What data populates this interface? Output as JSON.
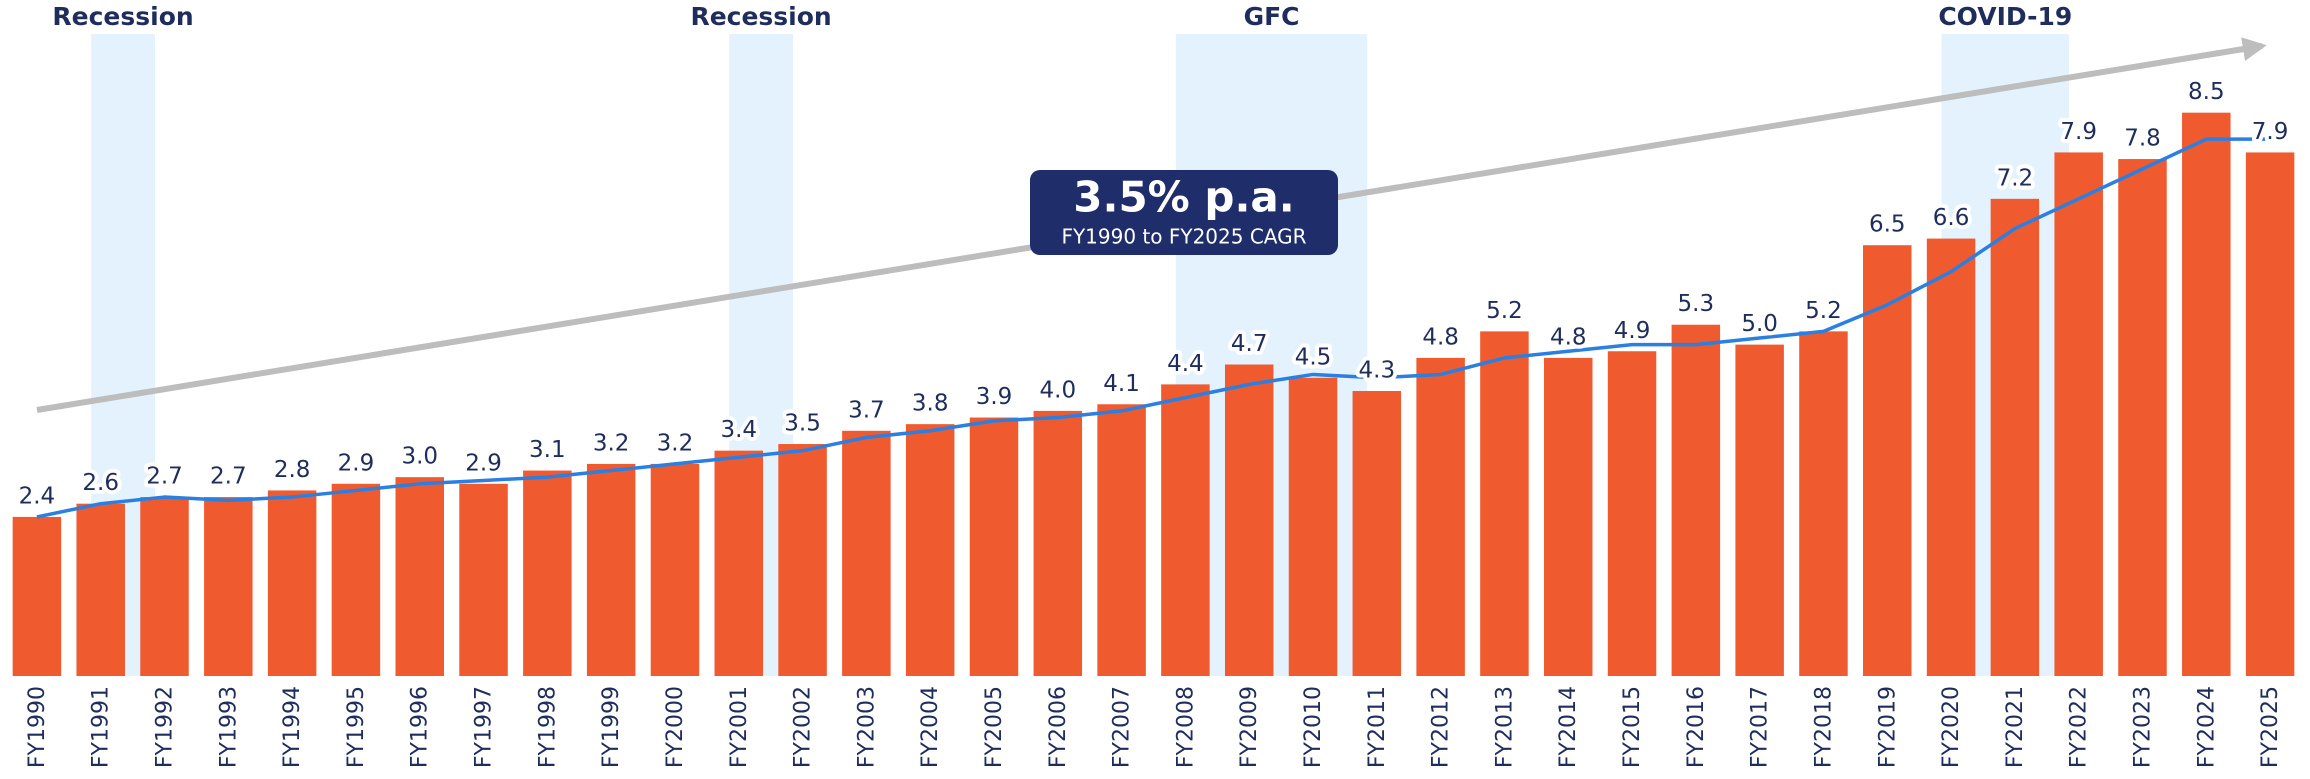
{
  "chart_data": {
    "type": "bar",
    "categories": [
      "FY1990",
      "FY1991",
      "FY1992",
      "FY1993",
      "FY1994",
      "FY1995",
      "FY1996",
      "FY1997",
      "FY1998",
      "FY1999",
      "FY2000",
      "FY2001",
      "FY2002",
      "FY2003",
      "FY2004",
      "FY2005",
      "FY2006",
      "FY2007",
      "FY2008",
      "FY2009",
      "FY2010",
      "FY2011",
      "FY2012",
      "FY2013",
      "FY2014",
      "FY2015",
      "FY2016",
      "FY2017",
      "FY2018",
      "FY2019",
      "FY2020",
      "FY2021",
      "FY2022",
      "FY2023",
      "FY2024",
      "FY2025"
    ],
    "series": [
      {
        "type": "bar",
        "color": "#ef5a2e",
        "values": [
          2.4,
          2.6,
          2.7,
          2.7,
          2.8,
          2.9,
          3.0,
          2.9,
          3.1,
          3.2,
          3.2,
          3.4,
          3.5,
          3.7,
          3.8,
          3.9,
          4.0,
          4.1,
          4.4,
          4.7,
          4.5,
          4.3,
          4.8,
          5.2,
          4.8,
          4.9,
          5.3,
          5.0,
          5.2,
          6.5,
          6.6,
          7.2,
          7.9,
          7.8,
          8.5,
          7.9
        ],
        "value_labels": [
          "2.4",
          "2.6",
          "2.7",
          "2.7",
          "2.8",
          "2.9",
          "3.0",
          "2.9",
          "3.1",
          "3.2",
          "3.2",
          "3.4",
          "3.5",
          "3.7",
          "3.8",
          "3.9",
          "4.0",
          "4.1",
          "4.4",
          "4.7",
          "4.5",
          "4.3",
          "4.8",
          "5.2",
          "4.8",
          "4.9",
          "5.3",
          "5.0",
          "5.2",
          "6.5",
          "6.6",
          "7.2",
          "7.9",
          "7.8",
          "8.5",
          "7.9"
        ]
      },
      {
        "type": "line",
        "color": "#2b7fe0",
        "values": [
          2.4,
          2.6,
          2.7,
          2.65,
          2.7,
          2.8,
          2.9,
          2.95,
          3.0,
          3.1,
          3.2,
          3.3,
          3.4,
          3.6,
          3.7,
          3.85,
          3.9,
          4.0,
          4.2,
          4.4,
          4.55,
          4.5,
          4.55,
          4.8,
          4.9,
          5.0,
          5.0,
          5.1,
          5.2,
          5.6,
          6.1,
          6.75,
          7.2,
          7.65,
          8.1,
          8.1
        ]
      }
    ],
    "ylim": [
      0,
      10.2
    ],
    "shaded_periods": [
      {
        "label": "Recession",
        "start": "FY1991",
        "end": "FY1991"
      },
      {
        "label": "Recession",
        "start": "FY2001",
        "end": "FY2001"
      },
      {
        "label": "GFC",
        "start": "FY2008",
        "end": "FY2010"
      },
      {
        "label": "COVID-19",
        "start": "FY2020",
        "end": "FY2021"
      }
    ],
    "callout": {
      "title": "3.5% p.a.",
      "subtitle": "FY1990 to FY2025 CAGR"
    }
  }
}
